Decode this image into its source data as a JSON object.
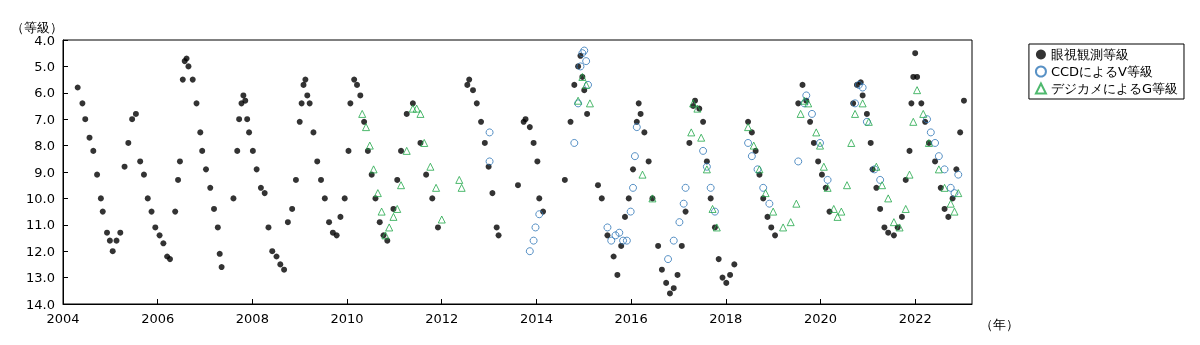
{
  "chart_data": {
    "type": "scatter",
    "xlabel": "（年）",
    "ylabel": "（等級）",
    "xlim": [
      2004,
      2023.2
    ],
    "xticks": [
      2004,
      2006,
      2008,
      2010,
      2012,
      2014,
      2016,
      2018,
      2020,
      2022
    ],
    "ylim": [
      14,
      4
    ],
    "yticks": [
      {
        "value": 4,
        "label": "4.0"
      },
      {
        "value": 5,
        "label": "5.0"
      },
      {
        "value": 6,
        "label": "6.0"
      },
      {
        "value": 7,
        "label": "7.0"
      },
      {
        "value": 8,
        "label": "8.0"
      },
      {
        "value": 9,
        "label": "9.0"
      },
      {
        "value": 10,
        "label": "10.0"
      },
      {
        "value": 11,
        "label": "11.0"
      },
      {
        "value": 12,
        "label": "12.0"
      },
      {
        "value": 13,
        "label": "13.0"
      },
      {
        "value": 14,
        "label": "14.0"
      }
    ],
    "grid": false,
    "legend": "top right",
    "series": [
      {
        "name": "眼視観測等級",
        "color": "#000000",
        "marker": "circle",
        "x": [
          2004.31,
          2004.41,
          2004.47,
          2004.56,
          2004.64,
          2004.72,
          2004.8,
          2004.84,
          2004.93,
          2004.99,
          2005.05,
          2005.13,
          2005.21,
          2005.3,
          2005.38,
          2005.46,
          2005.54,
          2005.63,
          2005.71,
          2005.79,
          2005.87,
          2005.95,
          2006.04,
          2006.12,
          2006.2,
          2006.26,
          2006.37,
          2006.43,
          2006.47,
          2006.53,
          2006.57,
          2006.61,
          2006.65,
          2006.74,
          2006.82,
          2006.9,
          2006.94,
          2007.02,
          2007.11,
          2007.19,
          2007.27,
          2007.31,
          2007.35,
          2007.6,
          2007.68,
          2007.72,
          2007.77,
          2007.81,
          2007.85,
          2007.89,
          2007.93,
          2008.01,
          2008.09,
          2008.18,
          2008.26,
          2008.34,
          2008.42,
          2008.51,
          2008.59,
          2008.67,
          2008.75,
          2008.84,
          2008.92,
          2009.0,
          2009.04,
          2009.08,
          2009.12,
          2009.16,
          2009.21,
          2009.29,
          2009.37,
          2009.45,
          2009.53,
          2009.62,
          2009.7,
          2009.78,
          2009.86,
          2009.95,
          2010.03,
          2010.07,
          2010.15,
          2010.21,
          2010.28,
          2010.36,
          2010.44,
          2010.52,
          2010.6,
          2010.69,
          2010.77,
          2010.85,
          2010.98,
          2011.06,
          2011.14,
          2011.26,
          2011.39,
          2011.55,
          2011.67,
          2011.8,
          2011.92,
          2012.54,
          2012.58,
          2012.66,
          2012.74,
          2012.83,
          2012.91,
          2012.99,
          2013.07,
          2013.16,
          2013.2,
          2013.61,
          2013.73,
          2013.77,
          2013.86,
          2013.94,
          2014.02,
          2014.06,
          2014.14,
          2014.6,
          2014.72,
          2014.8,
          2014.88,
          2014.93,
          2014.97,
          2015.01,
          2015.07,
          2015.3,
          2015.38,
          2015.5,
          2015.63,
          2015.71,
          2015.79,
          2015.87,
          2015.95,
          2016.04,
          2016.12,
          2016.16,
          2016.2,
          2016.28,
          2016.37,
          2016.45,
          2016.57,
          2016.65,
          2016.74,
          2016.82,
          2016.9,
          2016.98,
          2017.07,
          2017.15,
          2017.23,
          2017.31,
          2017.35,
          2017.44,
          2017.52,
          2017.6,
          2017.68,
          2017.77,
          2017.85,
          2017.93,
          2018.01,
          2018.09,
          2018.18,
          2018.47,
          2018.55,
          2018.63,
          2018.71,
          2018.79,
          2018.88,
          2018.96,
          2019.04,
          2019.53,
          2019.62,
          2019.7,
          2019.78,
          2019.86,
          2019.95,
          2020.03,
          2020.11,
          2020.19,
          2020.69,
          2020.77,
          2020.85,
          2020.89,
          2020.98,
          2021.06,
          2021.1,
          2021.18,
          2021.26,
          2021.35,
          2021.43,
          2021.55,
          2021.63,
          2021.72,
          2021.8,
          2021.88,
          2021.92,
          2021.96,
          2022.0,
          2022.04,
          2022.13,
          2022.21,
          2022.29,
          2022.42,
          2022.54,
          2022.62,
          2022.7,
          2022.79,
          2022.87,
          2022.95,
          2023.03
        ],
        "values": [
          5.8,
          6.4,
          7.0,
          7.7,
          8.2,
          9.1,
          10.0,
          10.5,
          11.3,
          11.6,
          12.0,
          11.6,
          11.3,
          8.8,
          7.9,
          7.0,
          6.8,
          8.6,
          9.1,
          10.0,
          10.5,
          11.1,
          11.4,
          11.7,
          12.2,
          12.3,
          10.5,
          9.3,
          8.6,
          5.5,
          4.8,
          4.7,
          5.0,
          5.5,
          6.4,
          7.5,
          8.2,
          8.9,
          9.6,
          10.4,
          11.1,
          12.1,
          12.6,
          10.0,
          8.2,
          7.0,
          6.4,
          6.1,
          6.3,
          7.0,
          7.5,
          8.2,
          8.9,
          9.6,
          9.8,
          11.1,
          12.0,
          12.2,
          12.5,
          12.7,
          10.9,
          10.4,
          9.3,
          7.1,
          6.4,
          5.7,
          5.5,
          6.1,
          6.4,
          7.5,
          8.6,
          9.3,
          10.0,
          10.9,
          11.3,
          11.4,
          10.7,
          10.0,
          8.2,
          6.4,
          5.5,
          5.7,
          6.1,
          7.1,
          8.2,
          9.1,
          10.0,
          10.9,
          11.4,
          11.6,
          10.4,
          9.3,
          8.2,
          6.8,
          6.4,
          7.9,
          9.1,
          10.0,
          11.1,
          5.7,
          5.5,
          5.9,
          6.4,
          7.1,
          7.9,
          8.8,
          9.8,
          11.1,
          11.4,
          9.5,
          7.1,
          7.0,
          7.3,
          7.9,
          8.6,
          10.0,
          10.5,
          9.3,
          7.1,
          5.7,
          5.0,
          4.6,
          5.4,
          5.9,
          6.8,
          9.5,
          10.0,
          11.4,
          12.2,
          12.9,
          11.8,
          10.7,
          10.0,
          8.9,
          7.1,
          6.4,
          6.8,
          7.5,
          8.6,
          10.0,
          11.8,
          12.7,
          13.2,
          13.6,
          13.4,
          12.9,
          11.8,
          10.5,
          7.9,
          6.5,
          6.3,
          6.6,
          7.1,
          8.6,
          10.0,
          11.1,
          12.3,
          13.0,
          13.2,
          12.9,
          12.5,
          7.1,
          7.5,
          8.2,
          9.1,
          10.0,
          10.7,
          11.1,
          11.4,
          6.4,
          5.7,
          6.3,
          7.1,
          7.9,
          8.6,
          9.1,
          9.6,
          10.5,
          6.4,
          5.7,
          5.6,
          6.1,
          6.8,
          7.9,
          8.9,
          9.6,
          10.4,
          11.1,
          11.3,
          11.4,
          11.1,
          10.7,
          9.3,
          8.2,
          6.4,
          5.4,
          4.5,
          5.4,
          6.4,
          7.1,
          7.9,
          8.6,
          9.6,
          10.4,
          10.7,
          10.0,
          8.9,
          7.5,
          6.3
        ]
      },
      {
        "name": "CCDによるV等級",
        "color": "#2e75b6",
        "marker": "circle",
        "x": [
          2013.01,
          2013.01,
          2013.86,
          2013.94,
          2013.98,
          2014.06,
          2014.8,
          2014.88,
          2014.93,
          2014.97,
          2015.01,
          2015.05,
          2015.09,
          2015.5,
          2015.58,
          2015.67,
          2015.75,
          2015.83,
          2015.91,
          2015.99,
          2016.04,
          2016.08,
          2016.12,
          2016.78,
          2016.9,
          2017.02,
          2017.11,
          2017.15,
          2017.52,
          2017.6,
          2017.68,
          2017.77,
          2018.47,
          2018.55,
          2018.67,
          2018.79,
          2018.92,
          2019.53,
          2019.66,
          2019.7,
          2019.82,
          2019.99,
          2020.15,
          2020.73,
          2020.81,
          2020.89,
          2020.98,
          2021.14,
          2021.26,
          2022.25,
          2022.33,
          2022.42,
          2022.5,
          2022.62,
          2022.75,
          2022.83,
          2022.91
        ],
        "values": [
          7.5,
          8.6,
          12.0,
          11.6,
          11.1,
          10.6,
          7.9,
          6.4,
          5.0,
          4.5,
          4.4,
          4.8,
          5.7,
          11.1,
          11.6,
          11.4,
          11.3,
          11.6,
          11.6,
          10.5,
          9.6,
          8.4,
          7.3,
          12.3,
          11.6,
          10.9,
          10.2,
          9.6,
          8.2,
          8.8,
          9.6,
          10.5,
          7.9,
          8.4,
          8.9,
          9.6,
          10.2,
          8.6,
          6.4,
          6.1,
          6.8,
          7.9,
          9.3,
          6.4,
          5.7,
          5.8,
          7.1,
          8.9,
          9.3,
          7.0,
          7.5,
          7.9,
          8.4,
          8.9,
          9.6,
          9.8,
          9.1
        ]
      },
      {
        "name": "デジカメによるG等級",
        "color": "#22a84a",
        "marker": "triangle",
        "x": [
          2010.32,
          2010.4,
          2010.48,
          2010.56,
          2010.65,
          2010.73,
          2010.81,
          2010.89,
          2010.98,
          2011.06,
          2011.14,
          2011.26,
          2011.39,
          2011.47,
          2011.55,
          2011.63,
          2011.76,
          2011.88,
          2012.0,
          2012.37,
          2012.42,
          2014.88,
          2014.97,
          2015.05,
          2015.13,
          2016.24,
          2016.45,
          2017.27,
          2017.31,
          2017.4,
          2017.48,
          2017.6,
          2017.72,
          2017.81,
          2018.47,
          2018.59,
          2018.71,
          2018.84,
          2019.0,
          2019.21,
          2019.37,
          2019.49,
          2019.58,
          2019.66,
          2019.74,
          2019.91,
          2019.99,
          2020.07,
          2020.15,
          2020.28,
          2020.36,
          2020.44,
          2020.56,
          2020.65,
          2020.73,
          2020.89,
          2021.02,
          2021.18,
          2021.3,
          2021.43,
          2021.55,
          2021.67,
          2021.8,
          2021.88,
          2021.96,
          2022.04,
          2022.17,
          2022.29,
          2022.5,
          2022.62,
          2022.75,
          2022.83,
          2022.91
        ],
        "values": [
          6.8,
          7.3,
          8.0,
          8.9,
          9.8,
          10.5,
          11.4,
          11.1,
          10.7,
          10.4,
          9.5,
          8.2,
          6.6,
          6.6,
          6.8,
          7.9,
          8.8,
          9.6,
          10.8,
          9.3,
          9.6,
          6.3,
          5.4,
          5.7,
          6.4,
          9.1,
          10.0,
          7.5,
          6.4,
          6.6,
          7.7,
          8.9,
          10.4,
          11.1,
          7.3,
          8.0,
          8.9,
          9.8,
          10.5,
          11.1,
          10.9,
          10.2,
          6.8,
          6.3,
          6.4,
          7.5,
          8.0,
          8.8,
          9.6,
          10.4,
          10.7,
          10.5,
          9.5,
          7.9,
          6.8,
          6.4,
          7.1,
          8.8,
          9.5,
          10.0,
          10.9,
          11.1,
          10.4,
          9.1,
          7.1,
          5.9,
          6.8,
          7.9,
          8.9,
          9.6,
          10.2,
          10.5,
          9.8
        ]
      }
    ]
  }
}
